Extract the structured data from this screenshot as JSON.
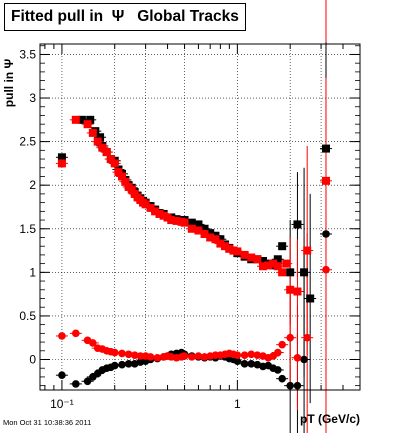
{
  "title": "Fitted pull in  Ψ   Global Tracks",
  "timestamp": "Mon Oct 31 10:38:36 2011",
  "chart_data": {
    "type": "scatter",
    "xlabel": "pT (GeV/c)",
    "ylabel": "pull in Ψ",
    "x_scale": "log",
    "xlim": [
      0.075,
      5.0
    ],
    "ylim": [
      -0.35,
      3.62
    ],
    "grid": true,
    "y_ticks": [
      "0",
      "0.5",
      "1",
      "1.5",
      "2",
      "2.5",
      "3",
      "3.5"
    ],
    "y_tick_values": [
      0,
      0.5,
      1,
      1.5,
      2,
      2.5,
      3,
      3.5
    ],
    "x_ticks": [
      "10⁻¹",
      "1"
    ],
    "x_tick_values": [
      0.1,
      1
    ],
    "series": [
      {
        "color": "#000000",
        "marker": "square",
        "points": [
          [
            0.1,
            2.32
          ],
          [
            0.13,
            2.75
          ],
          [
            0.145,
            2.75
          ],
          [
            0.155,
            2.62
          ],
          [
            0.165,
            2.55
          ],
          [
            0.17,
            2.45
          ],
          [
            0.18,
            2.38
          ],
          [
            0.19,
            2.3
          ],
          [
            0.2,
            2.28
          ],
          [
            0.21,
            2.18
          ],
          [
            0.22,
            2.13
          ],
          [
            0.23,
            2.06
          ],
          [
            0.24,
            2.0
          ],
          [
            0.25,
            1.97
          ],
          [
            0.26,
            1.92
          ],
          [
            0.27,
            1.88
          ],
          [
            0.28,
            1.85
          ],
          [
            0.29,
            1.82
          ],
          [
            0.3,
            1.8
          ],
          [
            0.32,
            1.76
          ],
          [
            0.34,
            1.72
          ],
          [
            0.36,
            1.68
          ],
          [
            0.38,
            1.67
          ],
          [
            0.4,
            1.63
          ],
          [
            0.42,
            1.63
          ],
          [
            0.45,
            1.61
          ],
          [
            0.48,
            1.6
          ],
          [
            0.5,
            1.6
          ],
          [
            0.55,
            1.57
          ],
          [
            0.6,
            1.55
          ],
          [
            0.65,
            1.5
          ],
          [
            0.7,
            1.45
          ],
          [
            0.75,
            1.42
          ],
          [
            0.8,
            1.38
          ],
          [
            0.85,
            1.32
          ],
          [
            0.9,
            1.28
          ],
          [
            0.95,
            1.25
          ],
          [
            1.0,
            1.22
          ],
          [
            1.1,
            1.18
          ],
          [
            1.2,
            1.15
          ],
          [
            1.3,
            1.15
          ],
          [
            1.4,
            1.13
          ],
          [
            1.5,
            1.1
          ],
          [
            1.6,
            1.08
          ],
          [
            1.7,
            1.15
          ],
          [
            1.8,
            1.3
          ],
          [
            2.0,
            1.0
          ],
          [
            2.2,
            1.55
          ],
          [
            2.4,
            1.0
          ],
          [
            2.6,
            0.7
          ],
          [
            3.2,
            2.42
          ]
        ]
      },
      {
        "color": "#ff0000",
        "marker": "square",
        "points": [
          [
            0.1,
            2.25
          ],
          [
            0.12,
            2.75
          ],
          [
            0.14,
            2.7
          ],
          [
            0.15,
            2.6
          ],
          [
            0.16,
            2.5
          ],
          [
            0.17,
            2.43
          ],
          [
            0.18,
            2.38
          ],
          [
            0.19,
            2.3
          ],
          [
            0.2,
            2.25
          ],
          [
            0.21,
            2.15
          ],
          [
            0.22,
            2.1
          ],
          [
            0.23,
            2.04
          ],
          [
            0.24,
            1.98
          ],
          [
            0.25,
            1.95
          ],
          [
            0.26,
            1.9
          ],
          [
            0.27,
            1.86
          ],
          [
            0.28,
            1.83
          ],
          [
            0.29,
            1.8
          ],
          [
            0.3,
            1.78
          ],
          [
            0.32,
            1.74
          ],
          [
            0.34,
            1.7
          ],
          [
            0.36,
            1.67
          ],
          [
            0.38,
            1.65
          ],
          [
            0.4,
            1.63
          ],
          [
            0.42,
            1.6
          ],
          [
            0.45,
            1.59
          ],
          [
            0.48,
            1.58
          ],
          [
            0.5,
            1.57
          ],
          [
            0.55,
            1.5
          ],
          [
            0.6,
            1.48
          ],
          [
            0.65,
            1.44
          ],
          [
            0.7,
            1.4
          ],
          [
            0.75,
            1.38
          ],
          [
            0.8,
            1.33
          ],
          [
            0.85,
            1.3
          ],
          [
            0.9,
            1.27
          ],
          [
            0.95,
            1.25
          ],
          [
            1.0,
            1.24
          ],
          [
            1.1,
            1.2
          ],
          [
            1.2,
            1.17
          ],
          [
            1.3,
            1.15
          ],
          [
            1.4,
            1.07
          ],
          [
            1.5,
            1.08
          ],
          [
            1.6,
            1.1
          ],
          [
            1.7,
            1.07
          ],
          [
            1.8,
            1.0
          ],
          [
            1.9,
            1.1
          ],
          [
            2.0,
            0.8
          ],
          [
            2.2,
            0.78
          ],
          [
            2.5,
            1.25
          ],
          [
            3.2,
            2.05
          ]
        ]
      },
      {
        "color": "#000000",
        "marker": "circle",
        "points": [
          [
            0.1,
            -0.18
          ],
          [
            0.12,
            -0.28
          ],
          [
            0.14,
            -0.25
          ],
          [
            0.15,
            -0.2
          ],
          [
            0.16,
            -0.16
          ],
          [
            0.17,
            -0.12
          ],
          [
            0.18,
            -0.1
          ],
          [
            0.19,
            -0.09
          ],
          [
            0.2,
            -0.07
          ],
          [
            0.22,
            -0.06
          ],
          [
            0.24,
            -0.05
          ],
          [
            0.26,
            -0.05
          ],
          [
            0.28,
            -0.03
          ],
          [
            0.3,
            -0.02
          ],
          [
            0.32,
            0.0
          ],
          [
            0.35,
            0.01
          ],
          [
            0.38,
            0.03
          ],
          [
            0.4,
            0.04
          ],
          [
            0.42,
            0.06
          ],
          [
            0.45,
            0.07
          ],
          [
            0.48,
            0.08
          ],
          [
            0.5,
            0.06
          ],
          [
            0.55,
            0.04
          ],
          [
            0.6,
            0.03
          ],
          [
            0.65,
            0.02
          ],
          [
            0.7,
            0.03
          ],
          [
            0.75,
            0.02
          ],
          [
            0.8,
            0.04
          ],
          [
            0.85,
            0.03
          ],
          [
            0.9,
            0.01
          ],
          [
            0.95,
            0.0
          ],
          [
            1.0,
            -0.02
          ],
          [
            1.1,
            -0.05
          ],
          [
            1.2,
            -0.05
          ],
          [
            1.3,
            -0.06
          ],
          [
            1.4,
            -0.08
          ],
          [
            1.5,
            -0.07
          ],
          [
            1.6,
            -0.1
          ],
          [
            1.7,
            -0.12
          ],
          [
            1.8,
            -0.22
          ],
          [
            2.0,
            -0.3
          ],
          [
            2.2,
            -0.3
          ],
          [
            2.4,
            0.0
          ],
          [
            3.2,
            1.44
          ]
        ]
      },
      {
        "color": "#ff0000",
        "marker": "circle",
        "points": [
          [
            0.1,
            0.27
          ],
          [
            0.12,
            0.3
          ],
          [
            0.14,
            0.22
          ],
          [
            0.15,
            0.19
          ],
          [
            0.16,
            0.13
          ],
          [
            0.17,
            0.12
          ],
          [
            0.18,
            0.1
          ],
          [
            0.19,
            0.09
          ],
          [
            0.2,
            0.08
          ],
          [
            0.22,
            0.07
          ],
          [
            0.24,
            0.06
          ],
          [
            0.26,
            0.05
          ],
          [
            0.28,
            0.04
          ],
          [
            0.3,
            0.04
          ],
          [
            0.32,
            0.03
          ],
          [
            0.35,
            0.02
          ],
          [
            0.38,
            0.03
          ],
          [
            0.4,
            0.04
          ],
          [
            0.42,
            0.03
          ],
          [
            0.45,
            0.02
          ],
          [
            0.48,
            0.03
          ],
          [
            0.5,
            0.04
          ],
          [
            0.55,
            0.03
          ],
          [
            0.6,
            0.04
          ],
          [
            0.65,
            0.03
          ],
          [
            0.7,
            0.04
          ],
          [
            0.75,
            0.05
          ],
          [
            0.8,
            0.05
          ],
          [
            0.85,
            0.06
          ],
          [
            0.9,
            0.07
          ],
          [
            0.95,
            0.06
          ],
          [
            1.0,
            0.05
          ],
          [
            1.1,
            0.05
          ],
          [
            1.2,
            0.06
          ],
          [
            1.3,
            0.05
          ],
          [
            1.4,
            0.04
          ],
          [
            1.5,
            0.02
          ],
          [
            1.6,
            0.04
          ],
          [
            1.7,
            0.08
          ],
          [
            1.8,
            0.17
          ],
          [
            2.0,
            0.25
          ],
          [
            2.2,
            0.02
          ],
          [
            2.5,
            0.25
          ],
          [
            3.2,
            1.03
          ]
        ]
      }
    ]
  }
}
